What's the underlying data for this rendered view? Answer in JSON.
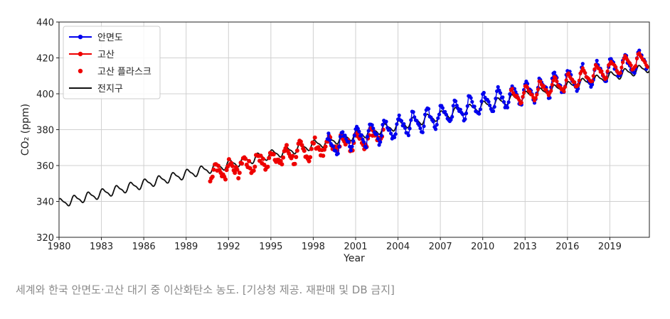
{
  "chart_data": {
    "type": "line",
    "xlabel": "Year",
    "ylabel": "CO₂ (ppm)",
    "xlim": [
      1980,
      2021.8
    ],
    "ylim": [
      320,
      440
    ],
    "xticks": [
      1980,
      1983,
      1986,
      1989,
      1992,
      1995,
      1998,
      2001,
      2004,
      2007,
      2010,
      2013,
      2016,
      2019
    ],
    "yticks": [
      320,
      340,
      360,
      380,
      400,
      420,
      440
    ],
    "grid": true,
    "legend_position": "top-left",
    "series": [
      {
        "name": "안면도",
        "color": "#0000ee",
        "style": "line-marker",
        "t0": 1999.0,
        "t1": 2021.7,
        "base0": 370.8,
        "base1": 419.5,
        "amplitude": 6.5,
        "noise": 3.0
      },
      {
        "name": "고산",
        "color": "#ee0000",
        "style": "line-marker",
        "t0": 2012.0,
        "t1": 2021.7,
        "base0": 397.5,
        "base1": 420.0,
        "amplitude": 4.8,
        "noise": 2.0
      },
      {
        "name": "고산 플라스크",
        "color": "#ee0000",
        "style": "marker",
        "t0": 1990.7,
        "t1": 2003.0,
        "base0": 355.8,
        "base1": 378.0,
        "amplitude": 5.0,
        "noise": 5.0
      },
      {
        "name": "전지구",
        "color": "#111111",
        "style": "line",
        "t0": 1980.0,
        "t1": 2021.8,
        "base0": 338.9,
        "base1": 414.6,
        "amplitude": 2.8,
        "noise": 0
      }
    ]
  },
  "caption": "세계와 한국 안면도·고산 대기 중 이산화탄소 농도. [기상청 제공. 재판매 및 DB 금지]"
}
